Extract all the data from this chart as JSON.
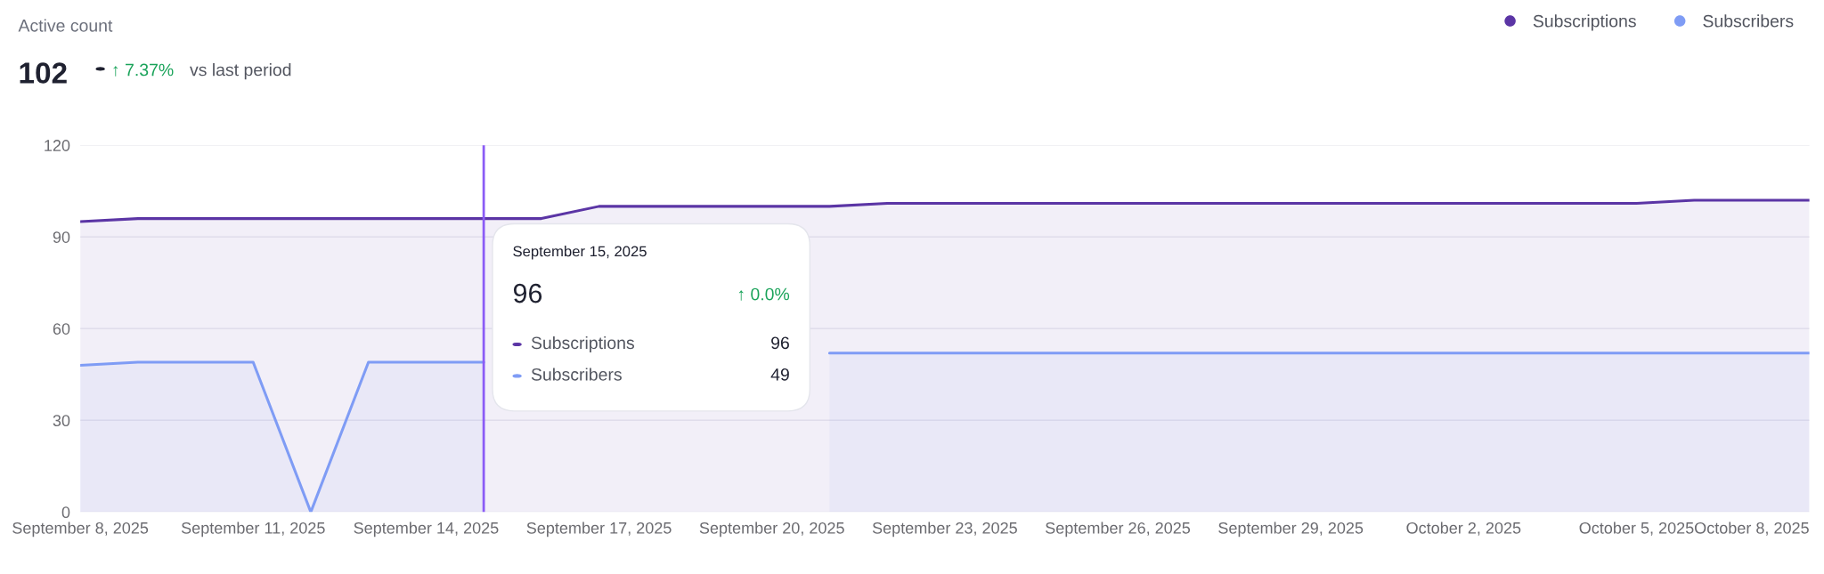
{
  "chart_data": {
    "type": "area",
    "title": "Active count",
    "subtitle": "102",
    "annotations": [
      "↑ 7.37%",
      "vs last period",
      "September 15, 2025",
      "96",
      "↑ 0.0%",
      "Subscriptions",
      "96",
      "Subscribers",
      "49"
    ],
    "x": [
      "2025-09-08",
      "2025-09-09",
      "2025-09-10",
      "2025-09-11",
      "2025-09-12",
      "2025-09-13",
      "2025-09-14",
      "2025-09-15",
      "2025-09-16",
      "2025-09-17",
      "2025-09-18",
      "2025-09-19",
      "2025-09-20",
      "2025-09-21",
      "2025-09-22",
      "2025-09-23",
      "2025-09-24",
      "2025-09-25",
      "2025-09-26",
      "2025-09-27",
      "2025-09-28",
      "2025-09-29",
      "2025-09-30",
      "2025-10-01",
      "2025-10-02",
      "2025-10-03",
      "2025-10-04",
      "2025-10-05",
      "2025-10-06",
      "2025-10-07",
      "2025-10-08"
    ],
    "series": [
      {
        "name": "Subscriptions",
        "color": "#5b35a5",
        "values": [
          95,
          96,
          96,
          96,
          96,
          96,
          96,
          96,
          96,
          100,
          100,
          100,
          100,
          100,
          101,
          101,
          101,
          101,
          101,
          101,
          101,
          101,
          101,
          101,
          101,
          101,
          101,
          101,
          102,
          102,
          102
        ]
      },
      {
        "name": "Subscribers",
        "color": "#7f9cf5",
        "values": [
          48,
          49,
          49,
          49,
          0,
          49,
          49,
          49,
          null,
          null,
          null,
          null,
          null,
          52,
          52,
          52,
          52,
          52,
          52,
          52,
          52,
          52,
          52,
          52,
          52,
          52,
          52,
          52,
          52,
          52,
          52
        ]
      }
    ],
    "xlim": [
      "2025-09-08",
      "2025-10-08"
    ],
    "xticks": [
      {
        "value": "2025-09-08",
        "label": "September 8, 2025"
      },
      {
        "value": "2025-09-11",
        "label": "September 11, 2025"
      },
      {
        "value": "2025-09-14",
        "label": "September 14, 2025"
      },
      {
        "value": "2025-09-17",
        "label": "September 17, 2025"
      },
      {
        "value": "2025-09-20",
        "label": "September 20, 2025"
      },
      {
        "value": "2025-09-23",
        "label": "September 23, 2025"
      },
      {
        "value": "2025-09-26",
        "label": "September 26, 2025"
      },
      {
        "value": "2025-09-29",
        "label": "September 29, 2025"
      },
      {
        "value": "2025-10-02",
        "label": "October 2, 2025"
      },
      {
        "value": "2025-10-05",
        "label": "October 5, 2025"
      },
      {
        "value": "2025-10-08",
        "label": "October 8, 2025"
      }
    ],
    "ylim": [
      0,
      120
    ],
    "yticks": [
      0,
      30,
      60,
      90,
      120
    ],
    "ref_lines": [
      {
        "axis": "x",
        "value": "2025-09-15",
        "color": "#8b5cf6"
      }
    ],
    "grid": "y",
    "legend": "top right"
  }
}
